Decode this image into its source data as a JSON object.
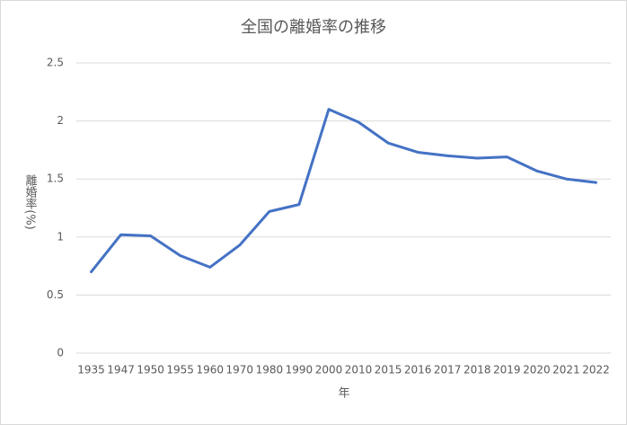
{
  "chart_data": {
    "type": "line",
    "title": "全国の離婚率の推移",
    "x_label": "年",
    "y_label": "離婚率(%)",
    "categories": [
      "1935",
      "1947",
      "1950",
      "1955",
      "1960",
      "1970",
      "1980",
      "1990",
      "2000",
      "2010",
      "2015",
      "2016",
      "2017",
      "2018",
      "2019",
      "2020",
      "2021",
      "2022"
    ],
    "series": [
      {
        "color": "#4472c4",
        "values": [
          0.7,
          1.02,
          1.01,
          0.84,
          0.74,
          0.93,
          1.22,
          1.28,
          2.1,
          1.99,
          1.81,
          1.73,
          1.7,
          1.68,
          1.69,
          1.57,
          1.5,
          1.47
        ]
      }
    ],
    "ylim": [
      0,
      2.5
    ],
    "yticks": [
      0,
      0.5,
      1,
      1.5,
      2,
      2.5
    ],
    "grid": true
  }
}
